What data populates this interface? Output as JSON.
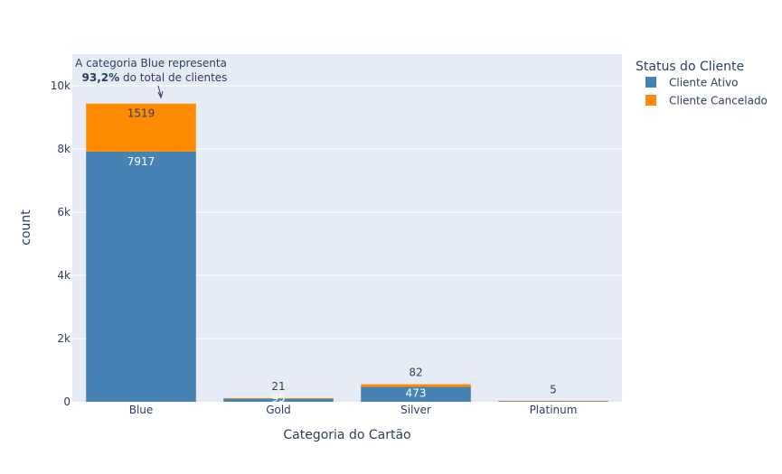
{
  "chart_data": {
    "type": "bar",
    "barmode": "stack",
    "xlabel": "Categoria do Cartão",
    "ylabel": "count",
    "categories": [
      "Blue",
      "Gold",
      "Silver",
      "Platinum"
    ],
    "ylim": [
      0,
      11000
    ],
    "yticks": [
      {
        "value": 0,
        "label": "0"
      },
      {
        "value": 2000,
        "label": "2k"
      },
      {
        "value": 4000,
        "label": "4k"
      },
      {
        "value": 6000,
        "label": "6k"
      },
      {
        "value": 8000,
        "label": "8k"
      },
      {
        "value": 10000,
        "label": "10k"
      }
    ],
    "grid": true,
    "series": [
      {
        "name": "Cliente Ativo",
        "color": "#4682b4",
        "values": [
          7917,
          95,
          473,
          15
        ],
        "labels": [
          "7917",
          "95",
          "473",
          ""
        ]
      },
      {
        "name": "Cliente Cancelado",
        "color": "#ff8c00",
        "values": [
          1519,
          21,
          82,
          5
        ],
        "labels": [
          "1519",
          "21",
          "82",
          "5"
        ]
      }
    ],
    "legend": {
      "title": "Status do Cliente",
      "position": "top-right"
    },
    "annotation": {
      "category": "Blue",
      "value": 9436,
      "line1": "A categoria Blue representa",
      "bold": "93,2%",
      "rest": " do total de clientes"
    }
  }
}
